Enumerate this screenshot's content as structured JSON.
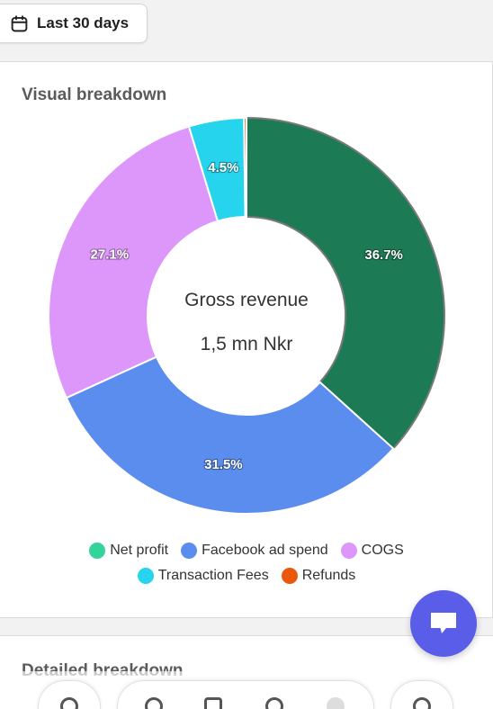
{
  "date_filter": {
    "label": "Last 30 days",
    "icon": "calendar-icon"
  },
  "card": {
    "title": "Visual breakdown"
  },
  "chart_data": {
    "type": "pie",
    "donut": true,
    "center_title": "Gross revenue",
    "center_value": "1,5 mn Nkr",
    "slices": [
      {
        "name": "Net profit",
        "value": 36.7,
        "label": "36.7%",
        "color": "#1c7a55"
      },
      {
        "name": "Facebook ad spend",
        "value": 31.5,
        "label": "31.5%",
        "color": "#5b8def"
      },
      {
        "name": "COGS",
        "value": 27.1,
        "label": "27.1%",
        "color": "#dd97fb"
      },
      {
        "name": "Transaction Fees",
        "value": 4.5,
        "label": "4.5%",
        "color": "#27d4ee"
      },
      {
        "name": "Refunds",
        "value": 0.2,
        "label": "",
        "color": "#ea580c"
      }
    ],
    "legend": [
      {
        "name": "Net profit",
        "color": "#34d399"
      },
      {
        "name": "Facebook ad spend",
        "color": "#5b8def"
      },
      {
        "name": "COGS",
        "color": "#dd97fb"
      },
      {
        "name": "Transaction Fees",
        "color": "#27d4ee"
      },
      {
        "name": "Refunds",
        "color": "#ea580c"
      }
    ],
    "legend_placement": "bottom"
  },
  "card2": {
    "title": "Detailed breakdown"
  },
  "chat": {
    "icon": "chat-icon",
    "color": "#5a5de8"
  }
}
